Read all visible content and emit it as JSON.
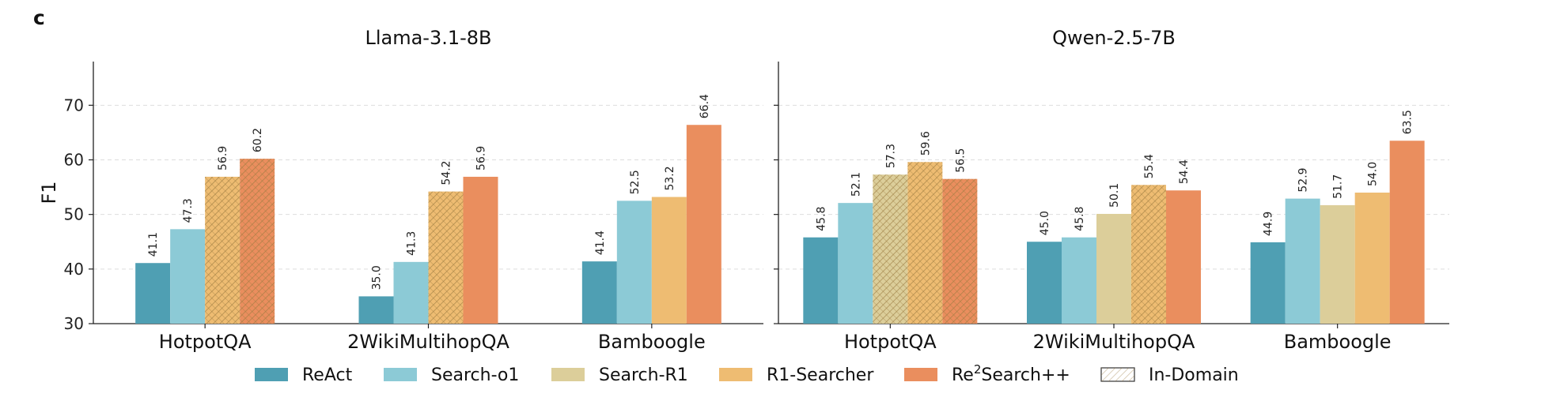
{
  "figure": {
    "panel_label": "c",
    "ylabel": "F1"
  },
  "colors": {
    "ReAct": "#4f9fb3",
    "Search-o1": "#8ccad6",
    "Search-R1": "#dcce9a",
    "R1-Searcher": "#eebc72",
    "Re2Search++": "#ea8e5e",
    "hatch": "#9a7a40",
    "grid": "#dddddd"
  },
  "legend": {
    "placement": "bottom-center",
    "items": [
      {
        "label": "ReAct",
        "color_key": "ReAct"
      },
      {
        "label": "Search-o1",
        "color_key": "Search-o1"
      },
      {
        "label": "Search-R1",
        "color_key": "Search-R1"
      },
      {
        "label": "R1-Searcher",
        "color_key": "R1-Searcher"
      },
      {
        "label_pre": "Re",
        "label_sup": "2",
        "label_post": "Search++",
        "color_key": "Re2Search++"
      },
      {
        "label": "In-Domain",
        "color_key": "hatch",
        "hatched": true
      }
    ]
  },
  "chart_data": [
    {
      "type": "bar",
      "title": "Llama-3.1-8B",
      "ylabel": "F1",
      "ylim": [
        30,
        78
      ],
      "yticks": [
        30,
        40,
        50,
        60,
        70
      ],
      "grid": true,
      "categories": [
        "HotpotQA",
        "2WikiMultihopQA",
        "Bamboogle"
      ],
      "series": [
        {
          "name": "ReAct",
          "values": [
            41.1,
            35.0,
            41.4
          ],
          "in_domain": [
            false,
            false,
            false
          ]
        },
        {
          "name": "Search-o1",
          "values": [
            47.3,
            41.3,
            52.5
          ],
          "in_domain": [
            false,
            false,
            false
          ]
        },
        {
          "name": "Search-R1",
          "values": [
            null,
            null,
            null
          ],
          "in_domain": [
            false,
            false,
            false
          ]
        },
        {
          "name": "R1-Searcher",
          "values": [
            56.9,
            54.2,
            53.2
          ],
          "in_domain": [
            true,
            true,
            false
          ]
        },
        {
          "name": "Re2Search++",
          "values": [
            60.2,
            56.9,
            66.4
          ],
          "in_domain": [
            true,
            false,
            false
          ]
        }
      ]
    },
    {
      "type": "bar",
      "title": "Qwen-2.5-7B",
      "ylim": [
        30,
        78
      ],
      "yticks": [
        30,
        40,
        50,
        60,
        70
      ],
      "grid": true,
      "categories": [
        "HotpotQA",
        "2WikiMultihopQA",
        "Bamboogle"
      ],
      "series": [
        {
          "name": "ReAct",
          "values": [
            45.8,
            45.0,
            44.9
          ],
          "in_domain": [
            false,
            false,
            false
          ]
        },
        {
          "name": "Search-o1",
          "values": [
            52.1,
            45.8,
            52.9
          ],
          "in_domain": [
            false,
            false,
            false
          ]
        },
        {
          "name": "Search-R1",
          "values": [
            57.3,
            50.1,
            51.7
          ],
          "in_domain": [
            true,
            false,
            false
          ]
        },
        {
          "name": "R1-Searcher",
          "values": [
            59.6,
            55.4,
            54.0
          ],
          "in_domain": [
            true,
            true,
            false
          ]
        },
        {
          "name": "Re2Search++",
          "values": [
            56.5,
            54.4,
            63.5
          ],
          "in_domain": [
            true,
            false,
            false
          ]
        }
      ]
    }
  ]
}
